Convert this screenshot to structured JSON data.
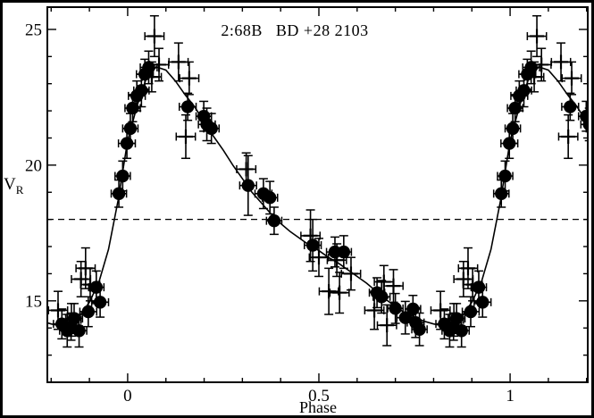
{
  "figure": {
    "background": "#ffffff",
    "frame_color": "#000000",
    "data_color": "#000000"
  },
  "chart_data": {
    "type": "scatter",
    "title": "2:68B   BD +28 2103",
    "xlabel": "Phase",
    "ylabel_base": "V",
    "ylabel_sub": "R",
    "xlim": [
      -0.21,
      1.203
    ],
    "ylim": [
      12.0,
      25.82
    ],
    "grid": false,
    "legend": "none",
    "x_major_ticks": [
      {
        "value": 0,
        "label": "0"
      },
      {
        "value": 0.5,
        "label": "0.5"
      },
      {
        "value": 1,
        "label": "1"
      }
    ],
    "x_minor_ticks": [
      -0.2,
      -0.1,
      0.1,
      0.2,
      0.3,
      0.4,
      0.6,
      0.7,
      0.8,
      0.9,
      1.1,
      1.2
    ],
    "y_major_ticks": [
      {
        "value": 15,
        "label": "15"
      },
      {
        "value": 20,
        "label": "20"
      },
      {
        "value": 25,
        "label": "25"
      }
    ],
    "y_minor_ticks": [
      13,
      14,
      16,
      17,
      18,
      19,
      21,
      22,
      23,
      24
    ],
    "reference_line_y": 18,
    "phase_fold_duplication": true,
    "series": [
      {
        "name": "filled-circle-points",
        "marker": "circle",
        "points": [
          [
            0.007,
            21.35,
            0.55,
            0.02
          ],
          [
            0.013,
            22.1,
            0.5,
            0.02
          ],
          [
            0.024,
            22.55,
            0.55,
            0.022
          ],
          [
            0.036,
            22.75,
            0.6,
            0.02
          ],
          [
            0.045,
            23.35,
            0.55,
            0.022
          ],
          [
            0.055,
            23.6,
            0.6,
            0.022
          ],
          [
            0.157,
            22.15,
            0.5,
            0.022
          ],
          [
            0.199,
            21.8,
            0.55,
            0.02
          ],
          [
            0.207,
            21.5,
            0.6,
            0.022
          ],
          [
            0.219,
            21.35,
            0.55,
            0.02
          ],
          [
            0.315,
            19.25,
            1.1,
            0.022
          ],
          [
            0.355,
            18.95,
            0.55,
            0.022
          ],
          [
            0.372,
            18.8,
            0.6,
            0.02
          ],
          [
            0.383,
            17.95,
            0.5,
            0.02
          ],
          [
            0.484,
            17.05,
            0.95,
            0.022
          ],
          [
            0.542,
            16.8,
            0.55,
            0.022
          ],
          [
            0.565,
            16.8,
            0.6,
            0.02
          ],
          [
            0.652,
            15.3,
            0.55,
            0.02
          ],
          [
            0.664,
            15.15,
            0.6,
            0.022
          ],
          [
            0.7,
            14.72,
            0.55,
            0.02
          ],
          [
            0.726,
            14.38,
            0.6,
            0.022
          ],
          [
            0.746,
            14.7,
            0.5,
            0.02
          ],
          [
            0.753,
            14.2,
            0.55,
            0.022
          ],
          [
            0.763,
            13.95,
            0.6,
            0.02
          ],
          [
            0.828,
            14.15,
            0.55,
            0.022
          ],
          [
            0.842,
            13.9,
            0.6,
            0.02
          ],
          [
            0.852,
            14.05,
            0.5,
            0.02
          ],
          [
            0.86,
            14.35,
            0.55,
            0.022
          ],
          [
            0.873,
            13.9,
            0.6,
            0.02
          ],
          [
            0.897,
            14.6,
            0.55,
            0.022
          ],
          [
            0.918,
            15.5,
            0.6,
            0.02
          ],
          [
            0.928,
            14.95,
            0.55,
            0.022
          ],
          [
            0.977,
            18.95,
            0.5,
            0.02
          ],
          [
            0.987,
            19.6,
            0.55,
            0.02
          ],
          [
            0.998,
            20.8,
            0.55,
            0.022
          ]
        ]
      },
      {
        "name": "plus-points",
        "marker": "plus",
        "points": [
          [
            0.063,
            23.25,
            0.55,
            0.025
          ],
          [
            0.07,
            24.75,
            0.75,
            0.025
          ],
          [
            0.082,
            23.7,
            0.6,
            0.025
          ],
          [
            0.133,
            23.8,
            0.7,
            0.025
          ],
          [
            0.152,
            21.05,
            0.8,
            0.025
          ],
          [
            0.161,
            23.2,
            0.6,
            0.025
          ],
          [
            0.31,
            19.85,
            0.6,
            0.025
          ],
          [
            0.478,
            17.4,
            0.95,
            0.025
          ],
          [
            0.5,
            16.6,
            0.7,
            0.025
          ],
          [
            0.526,
            15.35,
            0.85,
            0.025
          ],
          [
            0.547,
            16.5,
            0.6,
            0.025
          ],
          [
            0.554,
            15.3,
            0.75,
            0.025
          ],
          [
            0.584,
            16.0,
            0.6,
            0.025
          ],
          [
            0.645,
            14.65,
            0.7,
            0.025
          ],
          [
            0.67,
            15.7,
            0.6,
            0.025
          ],
          [
            0.678,
            14.1,
            0.75,
            0.025
          ],
          [
            0.695,
            15.55,
            0.6,
            0.025
          ],
          [
            0.818,
            14.65,
            0.7,
            0.025
          ],
          [
            0.853,
            14.3,
            0.6,
            0.025
          ],
          [
            0.878,
            15.8,
            0.65,
            0.025
          ],
          [
            0.89,
            16.2,
            0.75,
            0.025
          ],
          [
            0.902,
            15.6,
            0.6,
            0.025
          ]
        ]
      }
    ],
    "fit_curve": {
      "phase": [
        0,
        0.025,
        0.05,
        0.075,
        0.1,
        0.125,
        0.15,
        0.175,
        0.2,
        0.225,
        0.25,
        0.275,
        0.3,
        0.325,
        0.35,
        0.375,
        0.4,
        0.425,
        0.45,
        0.475,
        0.5,
        0.525,
        0.55,
        0.575,
        0.6,
        0.625,
        0.65,
        0.675,
        0.7,
        0.725,
        0.75,
        0.775,
        0.8,
        0.825,
        0.85,
        0.875,
        0.9,
        0.925,
        0.95,
        0.975,
        1.0
      ],
      "value": [
        20.9,
        22.2,
        23.25,
        23.62,
        23.5,
        23.1,
        22.6,
        22.15,
        21.6,
        21.05,
        20.55,
        20.0,
        19.5,
        19.0,
        18.6,
        18.2,
        17.85,
        17.55,
        17.3,
        17.05,
        16.85,
        16.6,
        16.4,
        16.15,
        15.9,
        15.65,
        15.35,
        15.05,
        14.8,
        14.55,
        14.4,
        14.25,
        14.15,
        14.08,
        14.2,
        14.45,
        14.95,
        15.7,
        16.9,
        18.7,
        20.9
      ]
    }
  }
}
